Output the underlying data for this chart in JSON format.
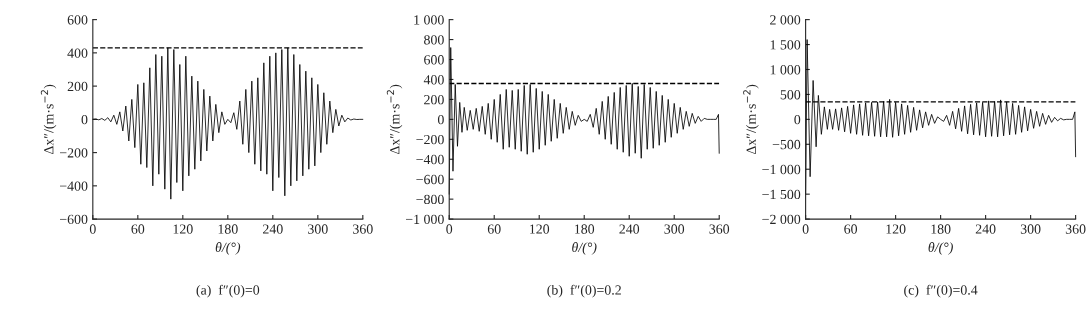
{
  "chart_data": [
    {
      "type": "line",
      "title": "(a)  f″(0)=0",
      "xlabel": "θ/(°)",
      "ylabel": "Δx″/(m·s$^{−2}$)",
      "xlim": [
        0,
        360
      ],
      "xticks": [
        0,
        60,
        120,
        180,
        240,
        300,
        360
      ],
      "ylim": [
        -600,
        600
      ],
      "yticks": [
        {
          "value": -600,
          "label": "−600"
        },
        {
          "value": -400,
          "label": "−400"
        },
        {
          "value": -200,
          "label": "−200"
        },
        0,
        200,
        400,
        600
      ],
      "grid": false,
      "legend": false,
      "line_style": "solid",
      "series": [
        {
          "color": "#000000",
          "x": [
            0,
            4,
            8,
            12,
            16,
            20,
            24,
            28,
            32,
            36,
            40,
            44,
            48,
            52,
            56,
            60,
            64,
            68,
            72,
            76,
            80,
            84,
            88,
            92,
            96,
            100,
            104,
            108,
            112,
            116,
            120,
            124,
            128,
            132,
            136,
            140,
            144,
            148,
            152,
            156,
            160,
            164,
            168,
            172,
            176,
            180,
            184,
            188,
            192,
            196,
            200,
            204,
            208,
            212,
            216,
            220,
            224,
            228,
            232,
            236,
            240,
            244,
            248,
            252,
            256,
            260,
            264,
            268,
            272,
            276,
            280,
            284,
            288,
            292,
            296,
            300,
            304,
            308,
            312,
            316,
            320,
            324,
            328,
            332,
            336,
            340,
            344,
            348,
            352,
            356,
            360
          ],
          "values": [
            0,
            2,
            -3,
            5,
            -6,
            10,
            -15,
            25,
            -30,
            45,
            -70,
            80,
            -130,
            120,
            -170,
            210,
            -270,
            220,
            -290,
            310,
            -400,
            390,
            -330,
            380,
            -420,
            430,
            -480,
            420,
            -380,
            330,
            -430,
            380,
            -340,
            260,
            -300,
            230,
            -250,
            180,
            -190,
            140,
            -130,
            90,
            -80,
            45,
            -30,
            0,
            -20,
            40,
            -60,
            110,
            -150,
            180,
            -200,
            230,
            -270,
            250,
            -310,
            340,
            -330,
            380,
            -430,
            400,
            -350,
            420,
            -460,
            430,
            -400,
            390,
            -370,
            330,
            -340,
            290,
            -300,
            250,
            -280,
            210,
            -200,
            160,
            -150,
            110,
            -80,
            60,
            -40,
            25,
            -15,
            8,
            -4,
            2,
            -1,
            0,
            0
          ]
        }
      ],
      "ref_lines": [
        {
          "axis": "y",
          "value": 430,
          "line_style": "dashed",
          "color": "#000000"
        }
      ]
    },
    {
      "type": "line",
      "title": "(b)  f″(0)=0.2",
      "xlabel": "θ/(°)",
      "ylabel": "Δx″/(m·s$^{−2}$)",
      "xlim": [
        0,
        360
      ],
      "xticks": [
        0,
        60,
        120,
        180,
        240,
        300,
        360
      ],
      "ylim": [
        -1000,
        1000
      ],
      "yticks": [
        {
          "value": -1000,
          "label": "−1 000"
        },
        {
          "value": -800,
          "label": "−800"
        },
        {
          "value": -600,
          "label": "−600"
        },
        {
          "value": -400,
          "label": "−400"
        },
        {
          "value": -200,
          "label": "−200"
        },
        0,
        200,
        400,
        600,
        800,
        {
          "value": 1000,
          "label": "1 000"
        }
      ],
      "grid": false,
      "legend": false,
      "line_style": "solid",
      "series": [
        {
          "color": "#000000",
          "x": [
            0,
            2,
            5,
            8,
            11,
            14,
            17,
            20,
            24,
            28,
            32,
            36,
            40,
            44,
            48,
            52,
            56,
            60,
            64,
            68,
            72,
            76,
            80,
            84,
            88,
            92,
            96,
            100,
            104,
            108,
            112,
            116,
            120,
            124,
            128,
            132,
            136,
            140,
            144,
            148,
            152,
            156,
            160,
            164,
            168,
            172,
            176,
            180,
            184,
            188,
            192,
            196,
            200,
            204,
            208,
            212,
            216,
            220,
            224,
            228,
            232,
            236,
            240,
            244,
            248,
            252,
            256,
            260,
            264,
            268,
            272,
            276,
            280,
            284,
            288,
            292,
            296,
            300,
            304,
            308,
            312,
            316,
            320,
            324,
            328,
            332,
            336,
            340,
            344,
            348,
            352,
            356,
            359,
            360
          ],
          "values": [
            -750,
            720,
            -520,
            350,
            -270,
            170,
            -130,
            120,
            -110,
            90,
            -100,
            110,
            -120,
            130,
            -150,
            160,
            -200,
            200,
            -230,
            250,
            -300,
            300,
            -280,
            290,
            -300,
            300,
            -320,
            340,
            -350,
            350,
            -330,
            310,
            -300,
            280,
            -260,
            250,
            -220,
            200,
            -190,
            160,
            -140,
            120,
            -100,
            80,
            -60,
            40,
            -20,
            0,
            -20,
            50,
            -80,
            110,
            -150,
            180,
            -200,
            230,
            -250,
            270,
            -300,
            320,
            -330,
            340,
            -370,
            360,
            -340,
            330,
            -390,
            350,
            -300,
            320,
            -290,
            280,
            -260,
            240,
            -230,
            200,
            -180,
            160,
            -140,
            120,
            -100,
            80,
            -70,
            60,
            -40,
            30,
            -20,
            10,
            0,
            0,
            0,
            0,
            50,
            -340
          ]
        }
      ],
      "ref_lines": [
        {
          "axis": "y",
          "value": 360,
          "line_style": "dashed",
          "color": "#000000"
        }
      ]
    },
    {
      "type": "line",
      "title": "(c)  f″(0)=0.4",
      "xlabel": "θ/(°)",
      "ylabel": "Δx″/(m·s$^{−2}$)",
      "xlim": [
        0,
        360
      ],
      "xticks": [
        0,
        60,
        120,
        180,
        240,
        300,
        360
      ],
      "ylim": [
        -2000,
        2000
      ],
      "yticks": [
        {
          "value": -2000,
          "label": "−2 000"
        },
        {
          "value": -1500,
          "label": "−1 500"
        },
        {
          "value": -1000,
          "label": "−1 000"
        },
        {
          "value": -500,
          "label": "−500"
        },
        0,
        500,
        {
          "value": 1000,
          "label": "1 000"
        },
        {
          "value": 1500,
          "label": "1 500"
        },
        {
          "value": 2000,
          "label": "2 000"
        }
      ],
      "grid": false,
      "legend": false,
      "line_style": "solid",
      "series": [
        {
          "color": "#000000",
          "x": [
            0,
            2,
            6,
            10,
            14,
            17,
            21,
            25,
            29,
            32,
            36,
            40,
            44,
            48,
            52,
            56,
            60,
            64,
            68,
            72,
            76,
            80,
            84,
            88,
            92,
            96,
            100,
            104,
            108,
            112,
            116,
            120,
            124,
            128,
            132,
            136,
            140,
            144,
            148,
            152,
            156,
            160,
            164,
            168,
            172,
            176,
            180,
            184,
            188,
            192,
            196,
            200,
            204,
            208,
            212,
            216,
            220,
            224,
            228,
            232,
            236,
            240,
            244,
            248,
            252,
            256,
            260,
            264,
            268,
            272,
            276,
            280,
            284,
            288,
            292,
            296,
            300,
            304,
            308,
            312,
            316,
            320,
            324,
            328,
            332,
            336,
            340,
            344,
            348,
            352,
            356,
            359,
            360
          ],
          "values": [
            -1500,
            1600,
            -1150,
            780,
            -550,
            480,
            -300,
            250,
            -200,
            200,
            -200,
            210,
            -220,
            230,
            -250,
            260,
            -280,
            290,
            -300,
            310,
            -320,
            330,
            -330,
            340,
            -340,
            350,
            -350,
            360,
            -350,
            400,
            -360,
            340,
            -330,
            310,
            -300,
            280,
            -260,
            240,
            -220,
            190,
            -170,
            150,
            -120,
            100,
            -80,
            50,
            0,
            -40,
            80,
            -120,
            160,
            -190,
            220,
            -240,
            270,
            -290,
            300,
            -310,
            330,
            -320,
            340,
            -350,
            370,
            -340,
            360,
            -350,
            390,
            -330,
            350,
            -310,
            320,
            -300,
            280,
            -260,
            250,
            -230,
            200,
            -180,
            160,
            -140,
            120,
            -100,
            80,
            -60,
            40,
            -30,
            20,
            -10,
            0,
            0,
            0,
            150,
            -750
          ]
        }
      ],
      "ref_lines": [
        {
          "axis": "y",
          "value": 350,
          "line_style": "dashed",
          "color": "#000000"
        }
      ]
    }
  ]
}
